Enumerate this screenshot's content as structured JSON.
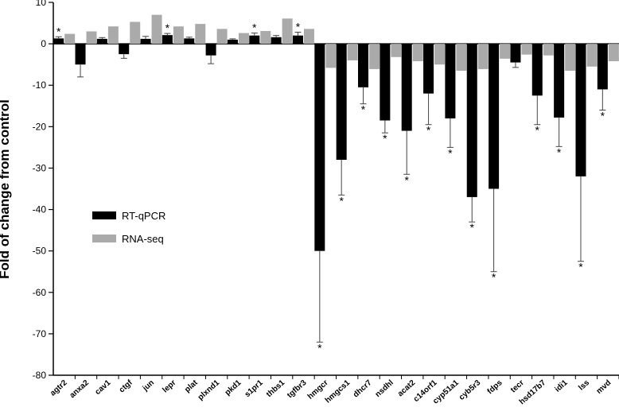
{
  "chart_data": {
    "type": "bar",
    "ylabel": "Fold of change from control",
    "ylim": [
      -80,
      10
    ],
    "yticks": [
      10,
      0,
      -10,
      -20,
      -30,
      -40,
      -50,
      -60,
      -70,
      -80
    ],
    "legend_position": "middle-left",
    "categories": [
      "agtr2",
      "anxa2",
      "cav1",
      "ctgf",
      "jun",
      "lepr",
      "plat",
      "plxnd1",
      "pkd1",
      "s1pr1",
      "thbs1",
      "tgfbr3",
      "hmgcr",
      "hmgcs1",
      "dhcr7",
      "nsdhl",
      "acat2",
      "c14orf1",
      "cyp51a1",
      "cyb5r3",
      "fdps",
      "tecr",
      "hsd17b7",
      "idi1",
      "lss",
      "mvd"
    ],
    "series": [
      {
        "name": "RT-qPCR",
        "color": "#000000",
        "values": [
          1.3,
          -5,
          1.2,
          -2.5,
          1.2,
          2.1,
          1.3,
          -2.8,
          1.0,
          2.0,
          1.6,
          2.0,
          -50,
          -28,
          -10.5,
          -18.5,
          -21,
          -12,
          -18,
          -37,
          -35,
          -4.5,
          -12.5,
          -17.8,
          -32,
          -11
        ],
        "errors": [
          0.4,
          3,
          0.3,
          1,
          0.6,
          0.4,
          0.3,
          2,
          0.2,
          0.6,
          0.4,
          0.8,
          22,
          8.5,
          4,
          3,
          10.5,
          7.5,
          7,
          6,
          20,
          1.2,
          7,
          7,
          20.5,
          5
        ],
        "significant": [
          true,
          false,
          false,
          false,
          false,
          true,
          false,
          false,
          false,
          true,
          false,
          true,
          true,
          true,
          true,
          true,
          true,
          true,
          true,
          true,
          true,
          false,
          true,
          true,
          true,
          true
        ]
      },
      {
        "name": "RNA-seq",
        "color": "#aaaaaa",
        "values": [
          2.4,
          3.0,
          4.2,
          5.3,
          7.0,
          4.2,
          4.8,
          3.6,
          2.6,
          3.1,
          6.1,
          3.6,
          -5.8,
          -4.0,
          -6.1,
          -3.2,
          -4.2,
          -5.0,
          -6.5,
          -6.1,
          -3.6,
          -2.6,
          -2.8,
          -6.5,
          -5.5,
          -4.2
        ]
      }
    ]
  }
}
